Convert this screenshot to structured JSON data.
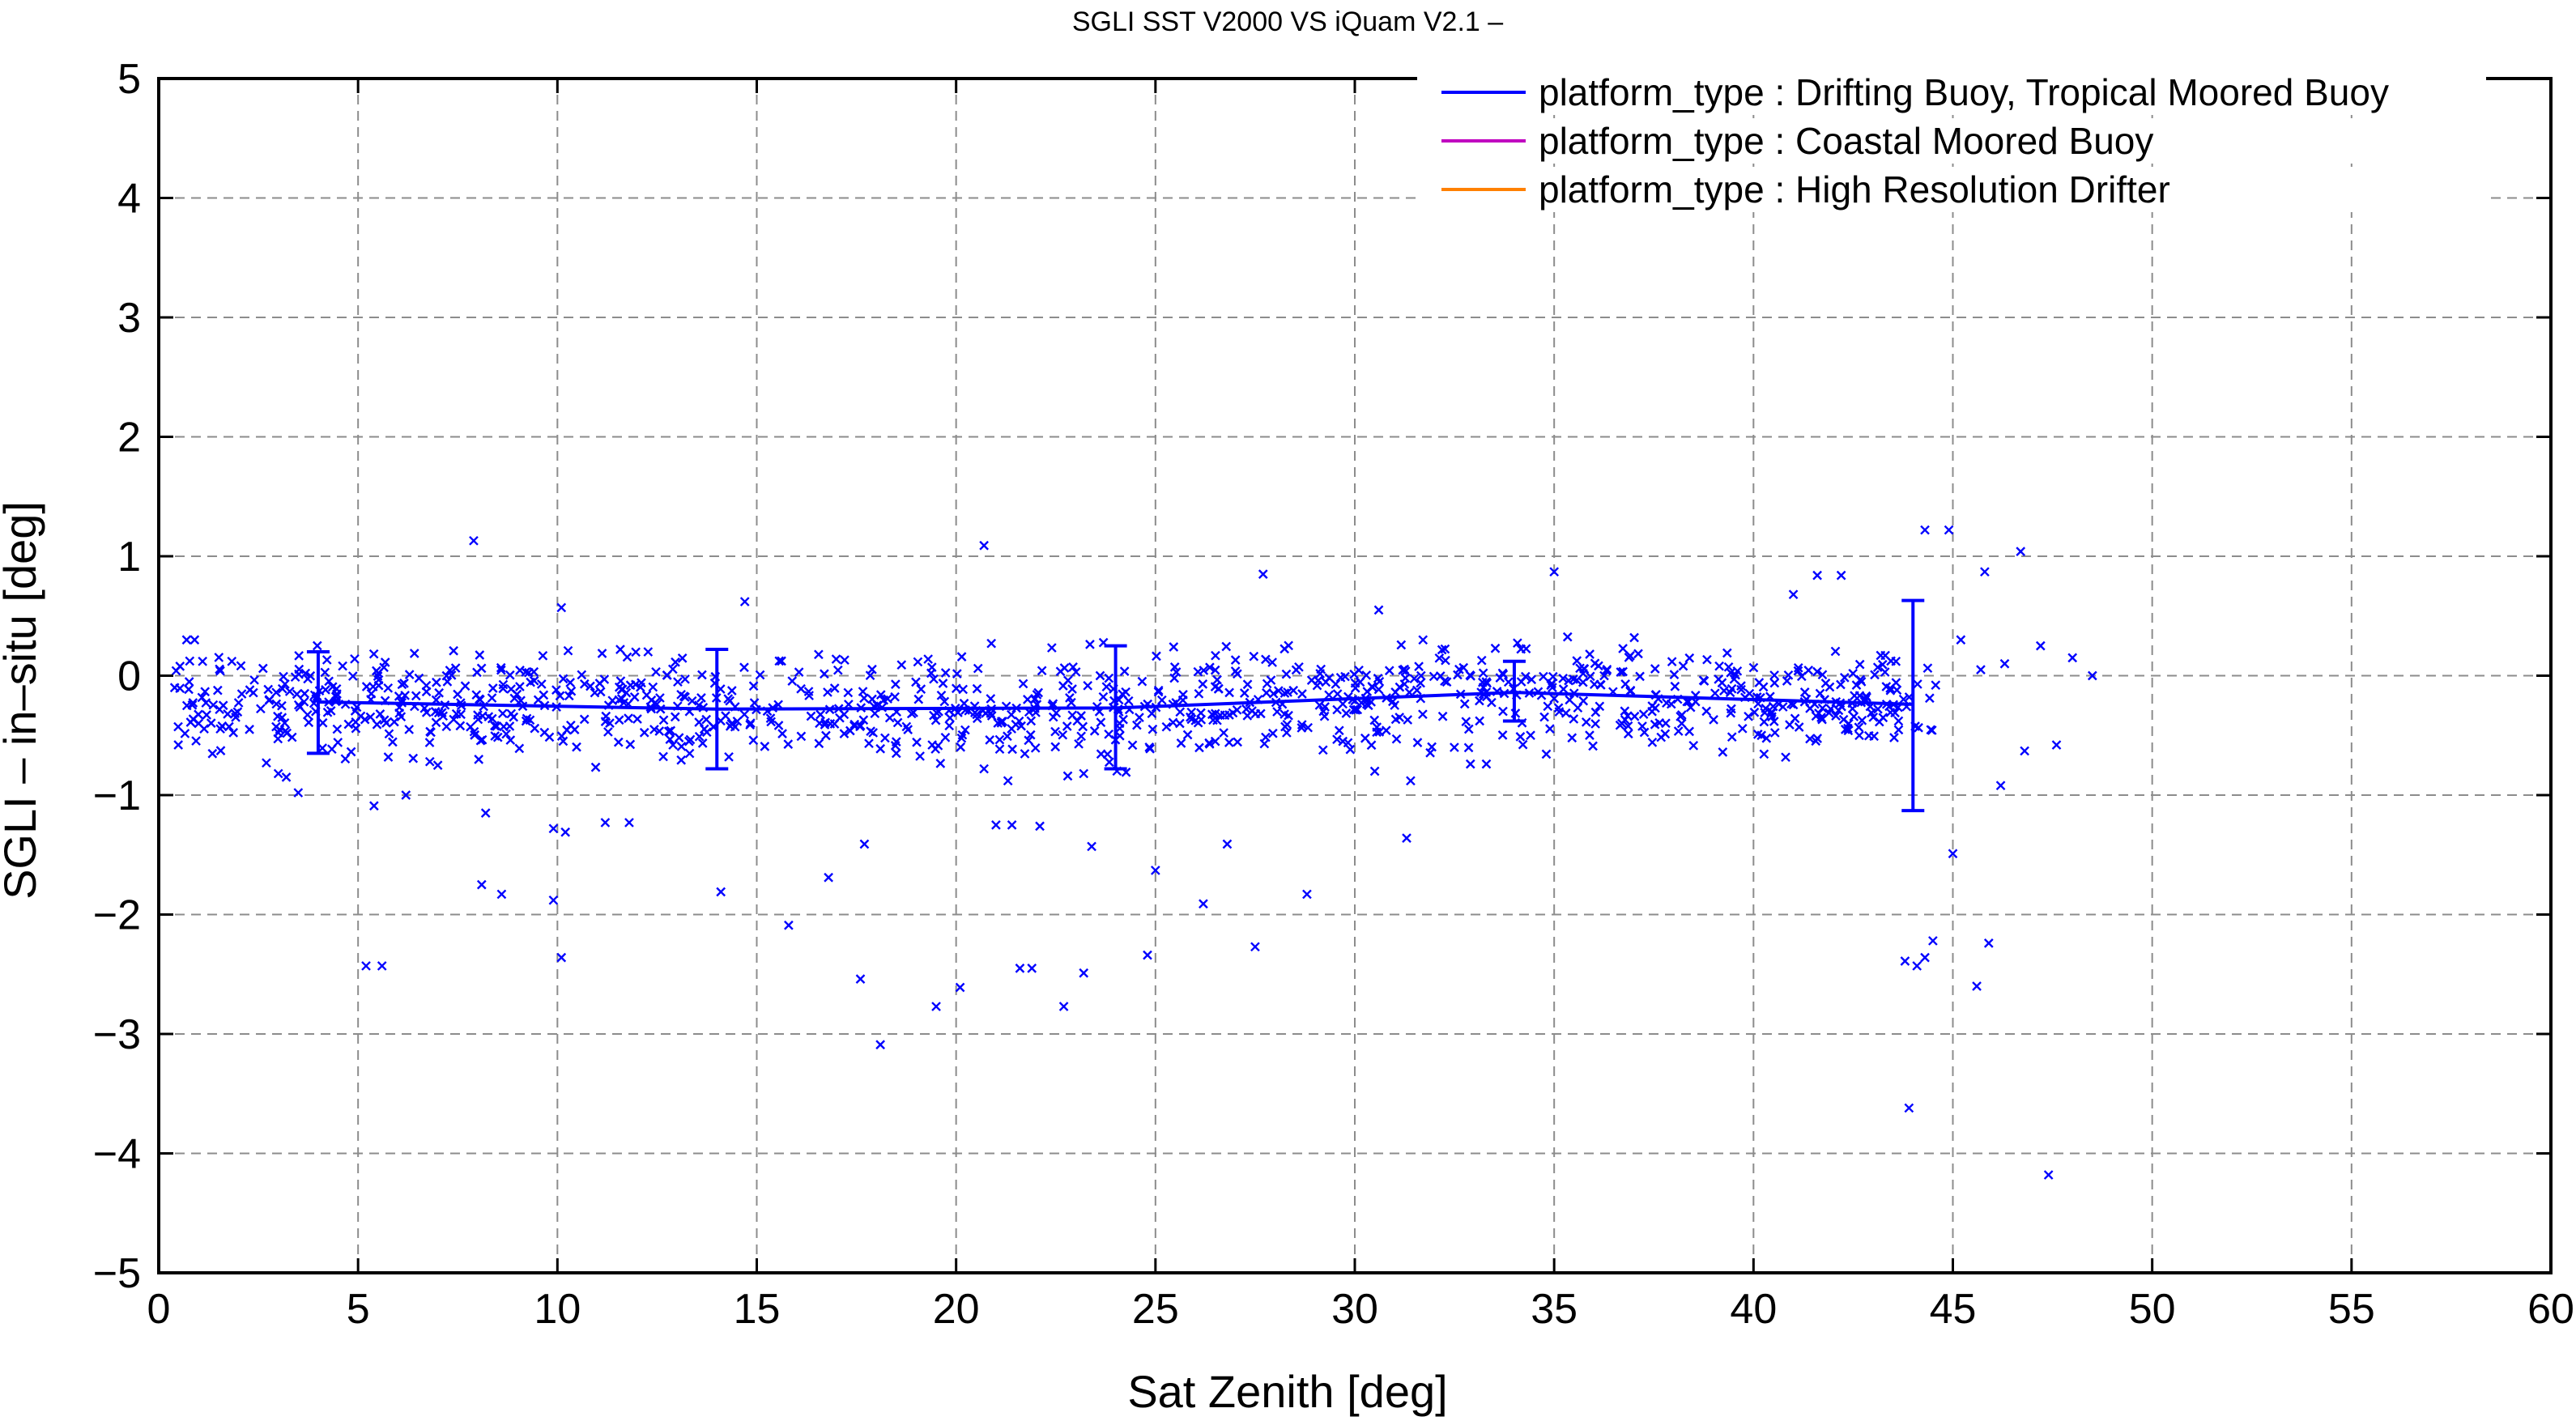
{
  "chart_data": {
    "type": "scatter",
    "title": "SGLI SST V2000 VS iQuam V2.1  –",
    "xlabel": "Sat Zenith [deg]",
    "ylabel": "SGLI – in–situ [deg]",
    "xlim": [
      0,
      60
    ],
    "ylim": [
      -5,
      5
    ],
    "x_ticks": [
      "0",
      "5",
      "10",
      "15",
      "20",
      "25",
      "30",
      "35",
      "40",
      "45",
      "50",
      "55",
      "60"
    ],
    "y_ticks": [
      "5",
      "4",
      "3",
      "2",
      "1",
      "0",
      "−1",
      "−2",
      "−3",
      "−4",
      "−5"
    ],
    "grid": true,
    "legend_position": "top-right",
    "colors": {
      "scatter": "#0000ff",
      "drifting": "#0000ff",
      "coastal": "#c000c0",
      "hrd": "#ff8000"
    },
    "legend": [
      {
        "label": "platform_type : Drifting Buoy, Tropical Moored Buoy",
        "color": "#0000ff"
      },
      {
        "label": "platform_type : Coastal Moored Buoy",
        "color": "#c000c0"
      },
      {
        "label": "platform_type : High Resolution Drifter",
        "color": "#ff8000"
      }
    ],
    "mean_line": {
      "name": "platform_type : Drifting Buoy, Tropical Moored Buoy",
      "points": [
        {
          "x": 4,
          "y": -0.22,
          "low": -0.65,
          "high": 0.2
        },
        {
          "x": 14,
          "y": -0.28,
          "low": -0.78,
          "high": 0.22
        },
        {
          "x": 24,
          "y": -0.27,
          "low": -0.78,
          "high": 0.25
        },
        {
          "x": 34,
          "y": -0.14,
          "low": -0.38,
          "high": 0.12
        },
        {
          "x": 44,
          "y": -0.24,
          "low": -1.13,
          "high": 0.63
        }
      ]
    },
    "outliers": [
      [
        7.9,
        1.13
      ],
      [
        20.7,
        1.09
      ],
      [
        44.3,
        1.22
      ],
      [
        44.9,
        1.22
      ],
      [
        46.7,
        1.04
      ],
      [
        35.0,
        0.87
      ],
      [
        45.8,
        0.87
      ],
      [
        27.7,
        0.85
      ],
      [
        41.6,
        0.84
      ],
      [
        42.2,
        0.84
      ],
      [
        10.1,
        0.57
      ],
      [
        30.6,
        0.55
      ],
      [
        14.7,
        0.62
      ],
      [
        41.0,
        0.68
      ],
      [
        5.2,
        -2.43
      ],
      [
        5.6,
        -2.43
      ],
      [
        8.1,
        -1.75
      ],
      [
        8.6,
        -1.83
      ],
      [
        8.2,
        -1.15
      ],
      [
        9.9,
        -1.88
      ],
      [
        10.1,
        -2.36
      ],
      [
        9.9,
        -1.28
      ],
      [
        10.2,
        -1.31
      ],
      [
        11.2,
        -1.23
      ],
      [
        11.8,
        -1.23
      ],
      [
        14.1,
        -1.81
      ],
      [
        15.8,
        -2.09
      ],
      [
        16.8,
        -1.69
      ],
      [
        17.6,
        -2.54
      ],
      [
        18.1,
        -3.09
      ],
      [
        17.7,
        -1.41
      ],
      [
        19.5,
        -2.77
      ],
      [
        20.1,
        -2.61
      ],
      [
        21.0,
        -1.25
      ],
      [
        21.4,
        -1.25
      ],
      [
        21.6,
        -2.45
      ],
      [
        21.9,
        -2.45
      ],
      [
        22.7,
        -2.77
      ],
      [
        23.2,
        -2.49
      ],
      [
        23.4,
        -1.43
      ],
      [
        22.1,
        -1.26
      ],
      [
        24.8,
        -2.34
      ],
      [
        25.0,
        -1.63
      ],
      [
        26.2,
        -1.91
      ],
      [
        26.8,
        -1.41
      ],
      [
        27.5,
        -2.27
      ],
      [
        28.8,
        -1.83
      ],
      [
        31.3,
        -1.36
      ],
      [
        5.4,
        -1.09
      ],
      [
        3.5,
        -0.98
      ],
      [
        6.2,
        -1.0
      ],
      [
        43.8,
        -2.39
      ],
      [
        44.1,
        -2.43
      ],
      [
        44.3,
        -2.36
      ],
      [
        44.5,
        -2.22
      ],
      [
        43.9,
        -3.62
      ],
      [
        45.0,
        -1.49
      ],
      [
        45.6,
        -2.6
      ],
      [
        45.9,
        -2.24
      ],
      [
        47.4,
        -4.18
      ],
      [
        46.2,
        -0.92
      ],
      [
        46.8,
        -0.63
      ],
      [
        47.6,
        -0.58
      ],
      [
        48.5,
        0.0
      ],
      [
        48.0,
        0.15
      ],
      [
        47.2,
        0.25
      ],
      [
        46.3,
        0.1
      ],
      [
        45.7,
        0.05
      ],
      [
        45.2,
        0.3
      ],
      [
        7.0,
        -0.75
      ],
      [
        6.8,
        -0.72
      ],
      [
        3.0,
        -0.82
      ],
      [
        3.2,
        -0.85
      ],
      [
        2.7,
        -0.73
      ],
      [
        1.0,
        -0.4
      ],
      [
        0.8,
        -0.39
      ],
      [
        0.4,
        -0.1
      ],
      [
        0.7,
        0.3
      ],
      [
        0.9,
        0.3
      ],
      [
        1.1,
        0.12
      ],
      [
        12.9,
        -0.58
      ],
      [
        13.3,
        -0.55
      ],
      [
        14.3,
        -0.68
      ],
      [
        18.5,
        -0.65
      ],
      [
        19.4,
        -0.58
      ],
      [
        20.7,
        -0.78
      ],
      [
        21.3,
        -0.88
      ],
      [
        22.8,
        -0.84
      ],
      [
        23.2,
        -0.82
      ],
      [
        26.5,
        -0.55
      ],
      [
        29.7,
        -0.55
      ],
      [
        30.5,
        -0.8
      ],
      [
        31.4,
        -0.88
      ],
      [
        32.9,
        -0.74
      ],
      [
        33.3,
        -0.74
      ],
      [
        36.7,
        -0.4
      ],
      [
        38.2,
        -0.4
      ],
      [
        40.2,
        -0.5
      ],
      [
        41.7,
        -0.35
      ]
    ]
  }
}
